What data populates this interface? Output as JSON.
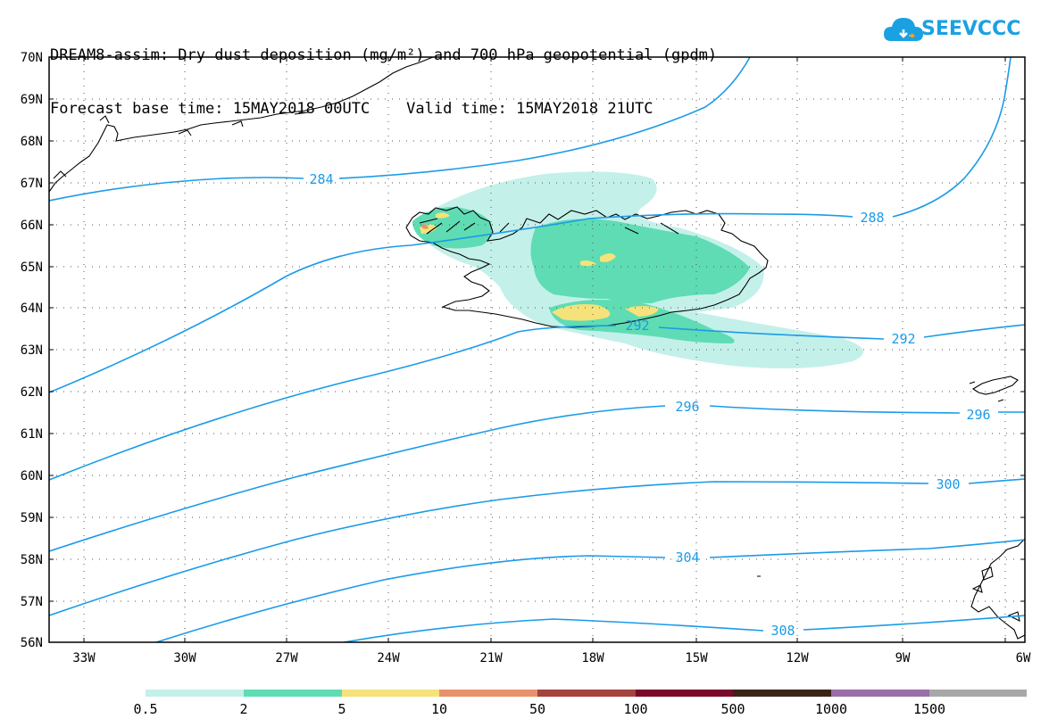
{
  "title": {
    "line1": "DREAM8-assim: Dry dust deposition (mg/m²) and 700 hPa geopotential (gpdm)",
    "line2": "Forecast base time: 15MAY2018 00UTC    Valid time: 15MAY2018 21UTC"
  },
  "logo": {
    "text": "SEEVCCC",
    "icon": "cloud-icon",
    "color": "#1ba1e2"
  },
  "map": {
    "lat_ticks": [
      "70N",
      "69N",
      "68N",
      "67N",
      "66N",
      "65N",
      "64N",
      "63N",
      "62N",
      "61N",
      "60N",
      "59N",
      "58N",
      "57N",
      "56N"
    ],
    "lon_ticks": [
      "33W",
      "30W",
      "27W",
      "24W",
      "21W",
      "18W",
      "15W",
      "12W",
      "9W",
      "6W"
    ],
    "contour_color": "#1a9be8",
    "contour_labels": [
      "284",
      "288",
      "292",
      "292",
      "296",
      "296",
      "300",
      "304",
      "308"
    ]
  },
  "colorbar": {
    "labels": [
      "0.5",
      "2",
      "5",
      "10",
      "50",
      "100",
      "500",
      "1000",
      "1500"
    ],
    "colors": [
      "#c4f0ea",
      "#5fdcb4",
      "#f5e27a",
      "#e8916a",
      "#a4443e",
      "#7a0a2a",
      "#3a2418",
      "#9a6ea8",
      "#a8a8a8"
    ]
  }
}
